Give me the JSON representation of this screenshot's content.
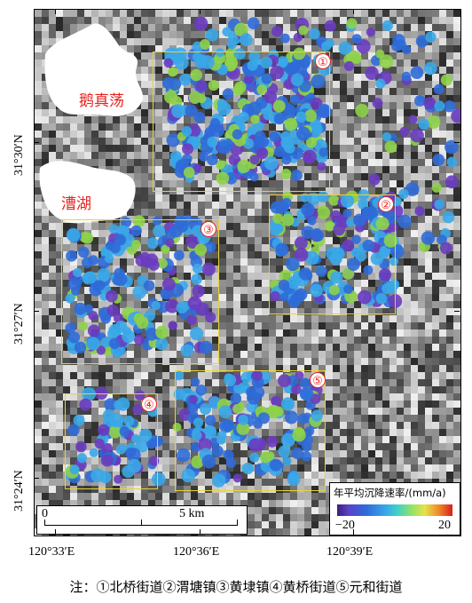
{
  "map": {
    "lakes": [
      {
        "name": "鹅真荡"
      },
      {
        "name": "漕湖"
      }
    ],
    "zones": [
      {
        "id": "zone-1",
        "num": "①"
      },
      {
        "id": "zone-2",
        "num": "②"
      },
      {
        "id": "zone-3",
        "num": "③"
      },
      {
        "id": "zone-4",
        "num": "④"
      },
      {
        "id": "zone-5",
        "num": "⑤"
      }
    ],
    "latitude_ticks": [
      "31°30′N",
      "31°27′N",
      "31°24′N"
    ],
    "longitude_ticks": [
      "120°33′E",
      "120°36′E",
      "120°39′E"
    ],
    "scale_bar": {
      "start": "0",
      "end": "5 km"
    },
    "legend": {
      "title": "年平均沉降速率/(mm/a)",
      "min": "−20",
      "max": "20",
      "colormap": [
        "#3b1f7a",
        "#5a43c9",
        "#2f6bd8",
        "#3aa7e8",
        "#3fd0c8",
        "#8ee26a",
        "#e6e24a",
        "#f08a2a",
        "#d81e1e"
      ]
    },
    "colors": {
      "zone_border": "#e8d23a",
      "zone_number": "#e8231f",
      "lake_label": "#e8231f",
      "point_blue": "#2f6bd8",
      "point_cyan": "#3aa7e8",
      "point_purple": "#6a3cbf",
      "point_green": "#8ed24a"
    }
  },
  "caption": "注：①北桥街道②渭塘镇③黄埭镇④黄桥街道⑤元和街道"
}
